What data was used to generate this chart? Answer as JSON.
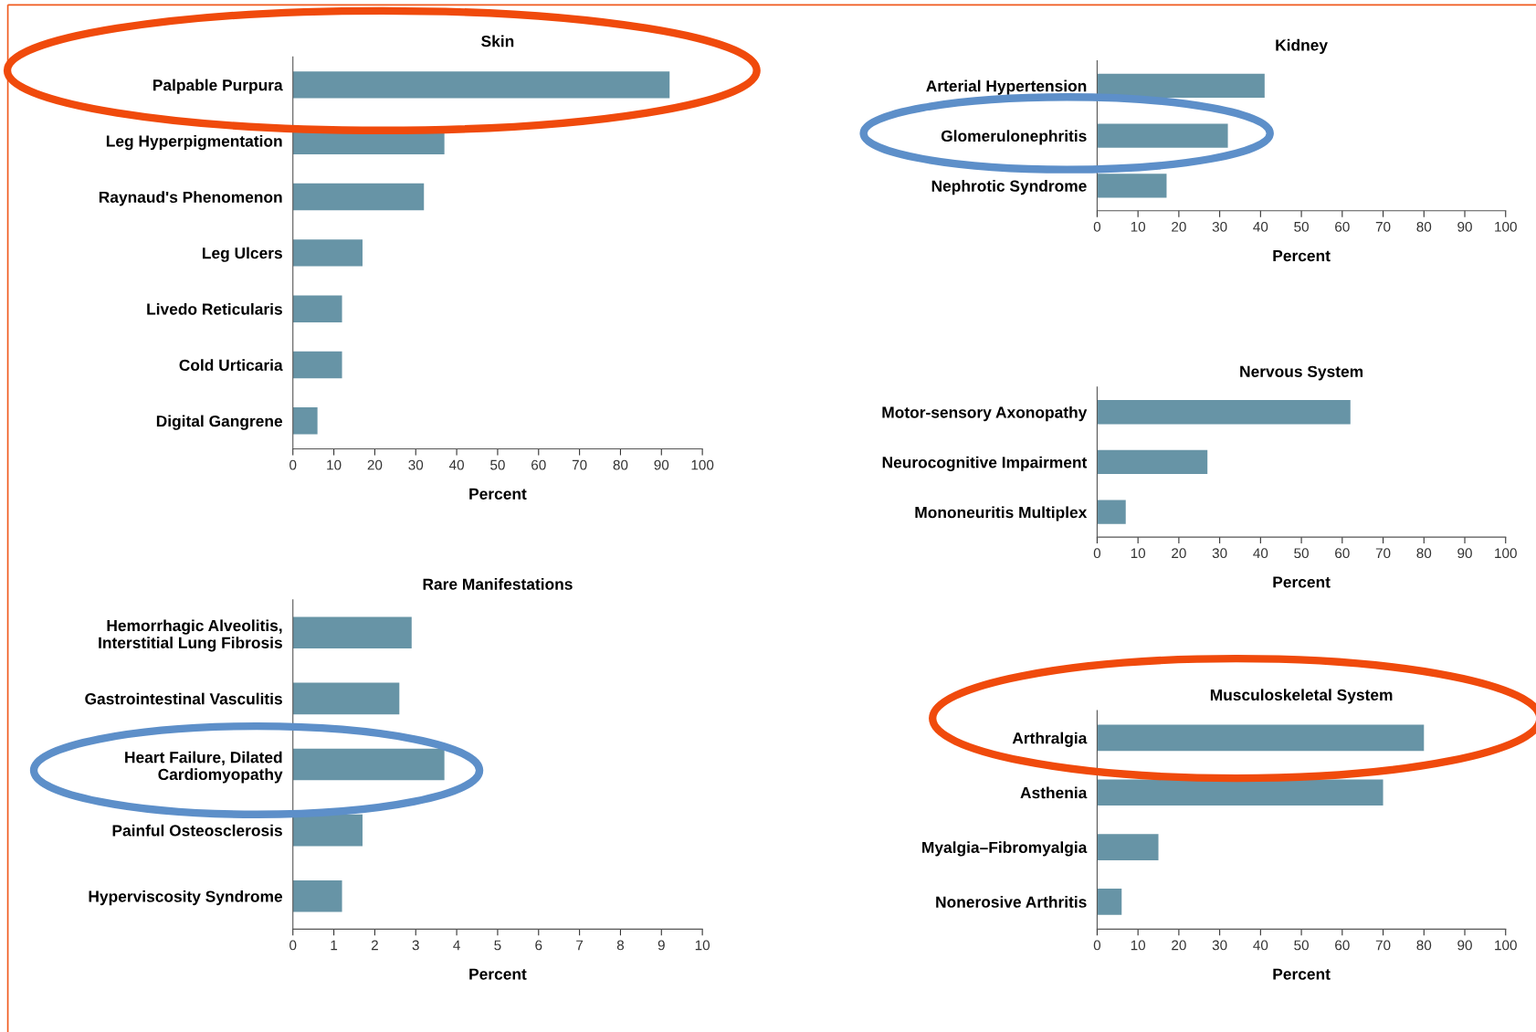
{
  "chart_data": [
    {
      "type": "bar",
      "orientation": "horizontal",
      "title": "Skin",
      "xlabel": "Percent",
      "categories": [
        "Palpable Purpura",
        "Leg Hyperpigmentation",
        "Raynaud's Phenomenon",
        "Leg Ulcers",
        "Livedo Reticularis",
        "Cold Urticaria",
        "Digital Gangrene"
      ],
      "values": [
        92,
        37,
        32,
        17,
        12,
        12,
        6
      ],
      "color": "#6794a6",
      "xlim": [
        0,
        100
      ],
      "xticks": [
        0,
        10,
        20,
        30,
        40,
        50,
        60,
        70,
        80,
        90,
        100
      ],
      "grid": false
    },
    {
      "type": "bar",
      "orientation": "horizontal",
      "title": "Kidney",
      "xlabel": "Percent",
      "categories": [
        "Arterial Hypertension",
        "Glomerulonephritis",
        "Nephrotic Syndrome"
      ],
      "values": [
        41,
        32,
        17
      ],
      "color": "#6794a6",
      "xlim": [
        0,
        100
      ],
      "xticks": [
        0,
        10,
        20,
        30,
        40,
        50,
        60,
        70,
        80,
        90,
        100
      ],
      "grid": false
    },
    {
      "type": "bar",
      "orientation": "horizontal",
      "title": "Nervous System",
      "xlabel": "Percent",
      "categories": [
        "Motor-sensory Axonopathy",
        "Neurocognitive Impairment",
        "Mononeuritis Multiplex"
      ],
      "values": [
        62,
        27,
        7
      ],
      "color": "#6794a6",
      "xlim": [
        0,
        100
      ],
      "xticks": [
        0,
        10,
        20,
        30,
        40,
        50,
        60,
        70,
        80,
        90,
        100
      ],
      "grid": false
    },
    {
      "type": "bar",
      "orientation": "horizontal",
      "title": "Rare Manifestations",
      "xlabel": "Percent",
      "categories": [
        "Hemorrhagic Alveolitis,\nInterstitial Lung Fibrosis",
        "Gastrointestinal Vasculitis",
        "Heart Failure, Dilated\nCardiomyopathy",
        "Painful Osteosclerosis",
        "Hyperviscosity Syndrome"
      ],
      "values": [
        2.9,
        2.6,
        3.7,
        1.7,
        1.2
      ],
      "color": "#6794a6",
      "xlim": [
        0,
        10
      ],
      "xticks": [
        0,
        1,
        2,
        3,
        4,
        5,
        6,
        7,
        8,
        9,
        10
      ],
      "grid": false
    },
    {
      "type": "bar",
      "orientation": "horizontal",
      "title": "Musculoskeletal System",
      "xlabel": "Percent",
      "categories": [
        "Arthralgia",
        "Asthenia",
        "Myalgia–Fibromyalgia",
        "Nonerosive Arthritis"
      ],
      "values": [
        80,
        70,
        15,
        6
      ],
      "color": "#6794a6",
      "xlim": [
        0,
        100
      ],
      "xticks": [
        0,
        10,
        20,
        30,
        40,
        50,
        60,
        70,
        80,
        90,
        100
      ],
      "grid": false
    }
  ]
}
